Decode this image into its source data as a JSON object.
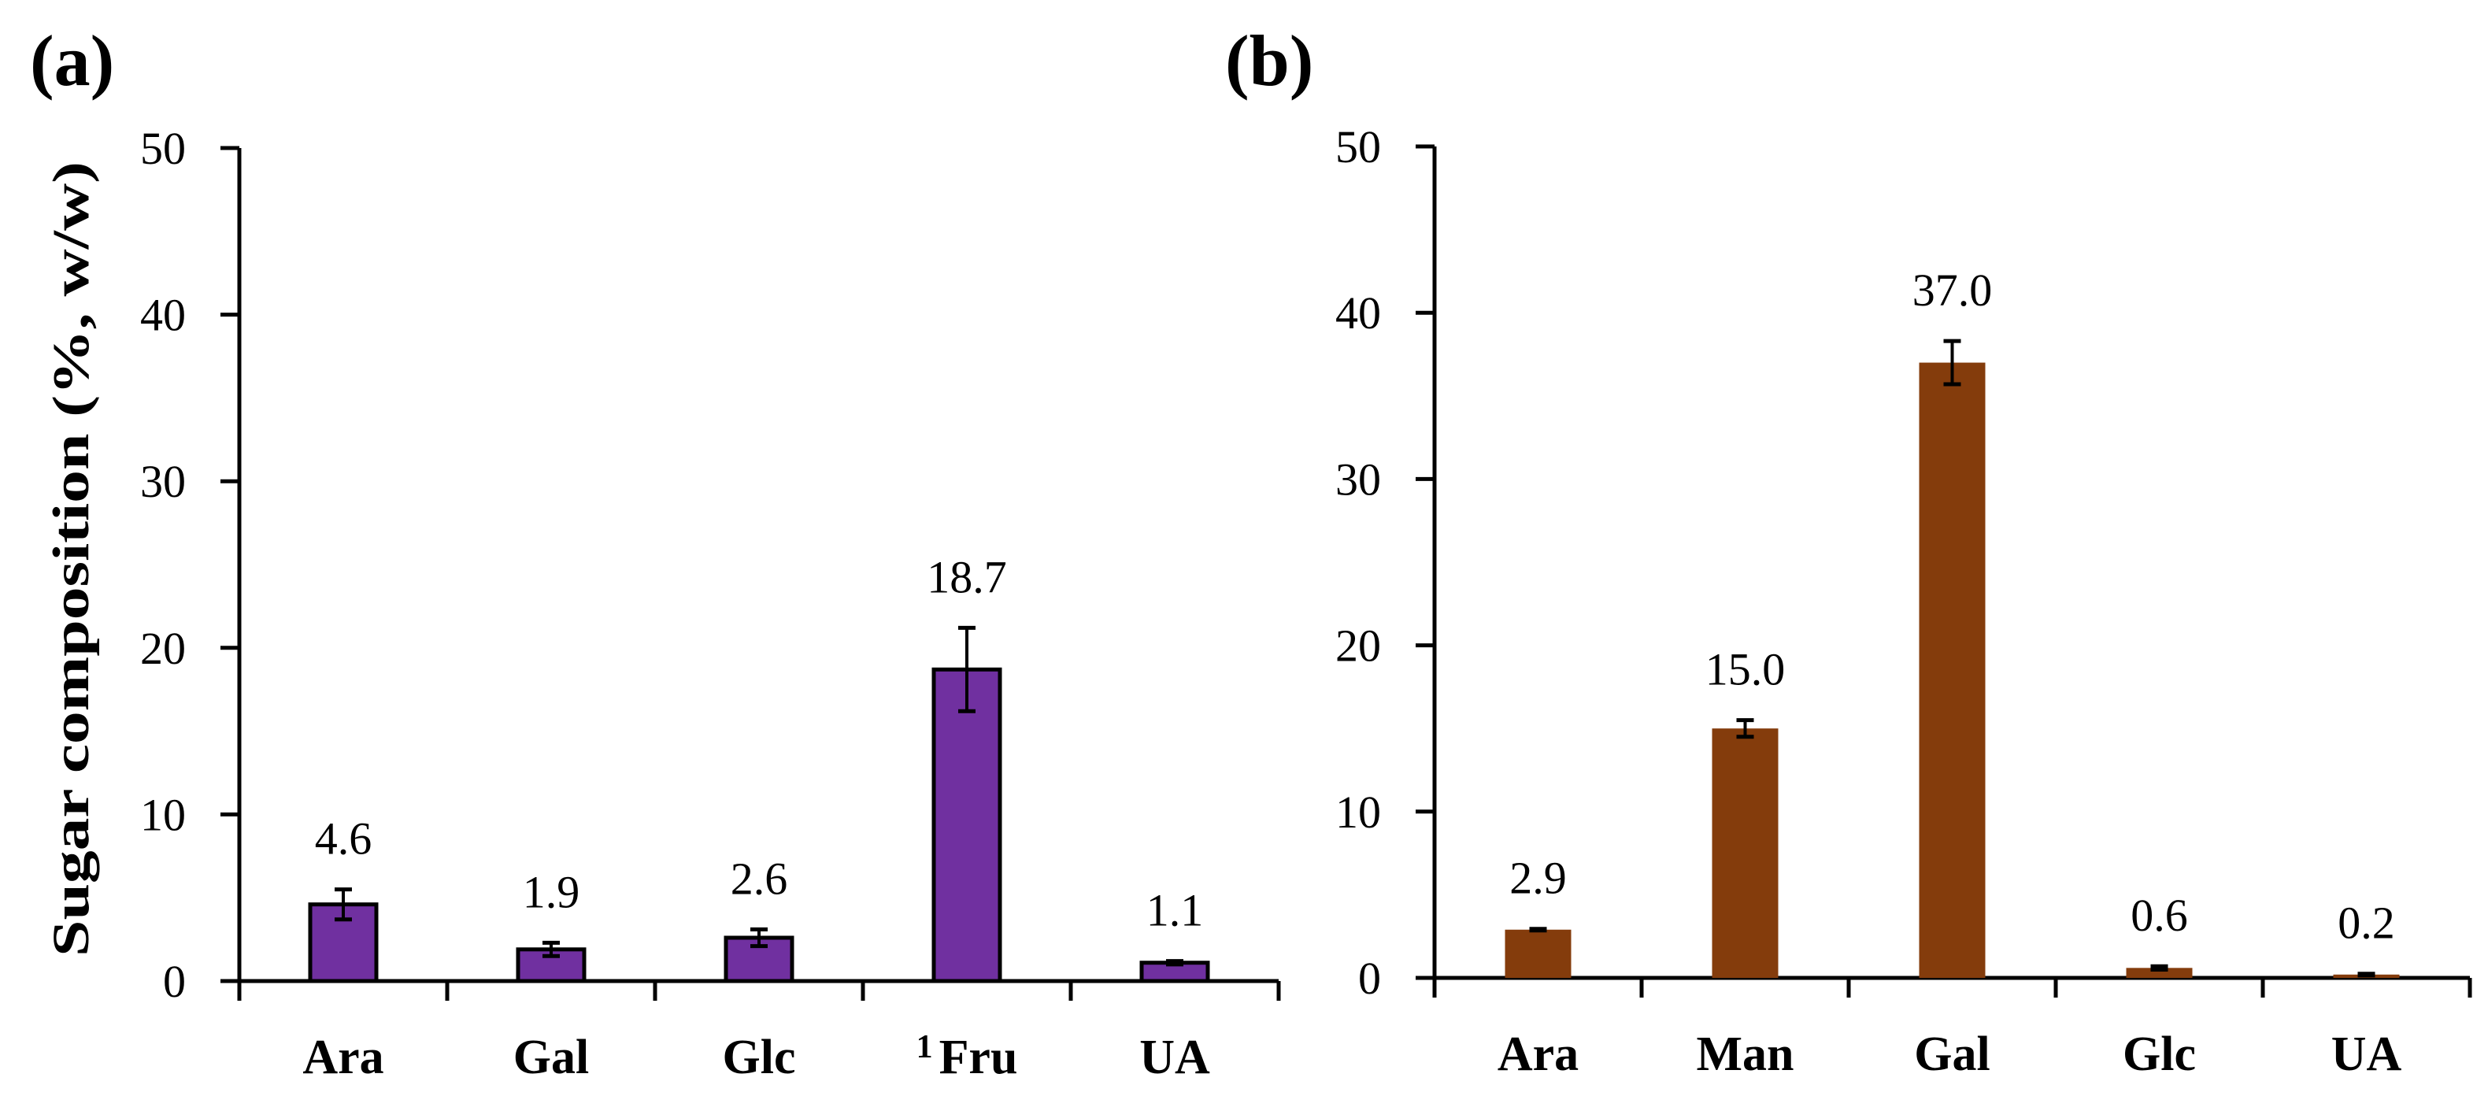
{
  "chart_data": [
    {
      "type": "bar",
      "panel_label": "(a)",
      "ylabel": "Sugar composition (%, w/w)",
      "xlabel": "",
      "ylim": [
        0,
        50
      ],
      "yticks": [
        "0",
        "10",
        "20",
        "30",
        "40",
        "50"
      ],
      "categories": [
        "Ara",
        "Gal",
        "Glc",
        "Fru",
        "UA"
      ],
      "category_superscripts": [
        "",
        "",
        "",
        "1",
        ""
      ],
      "values": [
        4.6,
        1.9,
        2.6,
        18.7,
        1.1
      ],
      "value_labels": [
        "4.6",
        "1.9",
        "2.6",
        "18.7",
        "1.1"
      ],
      "errors": [
        0.9,
        0.4,
        0.5,
        2.5,
        0.1
      ],
      "color": "#7030A0",
      "outline": "#000000",
      "grid": false
    },
    {
      "type": "bar",
      "panel_label": "(b)",
      "ylabel": "",
      "xlabel": "",
      "ylim": [
        0,
        50
      ],
      "yticks": [
        "0",
        "10",
        "20",
        "30",
        "40",
        "50"
      ],
      "categories": [
        "Ara",
        "Man",
        "Gal",
        "Glc",
        "UA"
      ],
      "category_superscripts": [
        "",
        "",
        "",
        "",
        ""
      ],
      "values": [
        2.9,
        15.0,
        37.0,
        0.6,
        0.2
      ],
      "value_labels": [
        "2.9",
        "15.0",
        "37.0",
        "0.6",
        "0.2"
      ],
      "errors": [
        0.05,
        0.5,
        1.3,
        0.1,
        0.05
      ],
      "color": "#843C0C",
      "outline": "none",
      "grid": false
    }
  ]
}
